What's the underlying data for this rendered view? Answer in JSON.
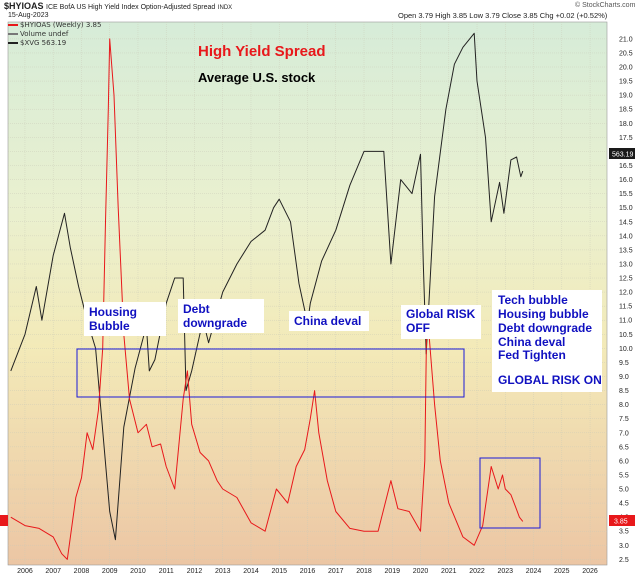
{
  "header": {
    "symbol": "$HYIOAS",
    "description": "ICE BofA US High Yield Index Option-Adjusted Spread",
    "exchange": "INDX",
    "date": "15-Aug-2023",
    "stats": "Open 3.79  High 3.85  Low 3.79  Close 3.85  Chg +0.02 (+0.52%)",
    "brand": "© StockCharts.com"
  },
  "legend": {
    "line1": "$HYIOAS (Weekly) 3.85",
    "line2": "Volume undef",
    "line3": "$XVG 563.19"
  },
  "colors": {
    "spread": "#e8181b",
    "stock": "#222222",
    "box": "#1a1ad8",
    "price_badge": "#1a1a1a"
  },
  "annotations": {
    "title": "High Yield Spread",
    "subtitle": "Average U.S. stock",
    "housing": [
      "Housing",
      "Bubble"
    ],
    "debt": [
      "Debt",
      "downgrade"
    ],
    "china": "China deval",
    "global": [
      "Global RISK",
      "OFF"
    ],
    "list": [
      "Tech bubble",
      "Housing bubble",
      "Debt downgrade",
      "China deval",
      "Fed Tighten",
      "",
      "GLOBAL RISK ON"
    ]
  },
  "badges": {
    "right_top": "563.19",
    "right_bottom": "3.85",
    "left": "3.85"
  },
  "chart_data": {
    "type": "line",
    "x_ticks": [
      "2006",
      "2007",
      "2008",
      "2009",
      "2010",
      "2011",
      "2012",
      "2013",
      "2014",
      "2015",
      "2016",
      "2017",
      "2018",
      "2019",
      "2020",
      "2021",
      "2022",
      "2023",
      "2024",
      "2025",
      "2026"
    ],
    "y_ticks": [
      "2.5",
      "3.0",
      "3.5",
      "4.0",
      "4.5",
      "5.0",
      "5.5",
      "6.0",
      "6.5",
      "7.0",
      "7.5",
      "8.0",
      "8.5",
      "9.0",
      "9.5",
      "10.0",
      "10.5",
      "11.0",
      "11.5",
      "12.0",
      "12.5",
      "13.0",
      "13.5",
      "14.0",
      "14.5",
      "15.0",
      "15.5",
      "16.0",
      "16.5",
      "17.0",
      "17.5",
      "18.0",
      "18.5",
      "19.0",
      "19.5",
      "20.0",
      "20.5",
      "21.0"
    ],
    "ylim": [
      2.3,
      21.6
    ],
    "xlim": [
      2005.4,
      2026.6
    ],
    "series": [
      {
        "name": "$HYIOAS (Weekly)",
        "x": [
          2005.5,
          2006.0,
          2006.5,
          2007.0,
          2007.3,
          2007.5,
          2007.8,
          2008.0,
          2008.2,
          2008.4,
          2008.6,
          2008.75,
          2008.85,
          2008.95,
          2009.0,
          2009.15,
          2009.3,
          2009.5,
          2009.7,
          2010.0,
          2010.3,
          2010.5,
          2010.8,
          2011.0,
          2011.3,
          2011.6,
          2011.75,
          2011.9,
          2012.2,
          2012.5,
          2012.8,
          2013.0,
          2013.5,
          2014.0,
          2014.5,
          2014.9,
          2015.3,
          2015.6,
          2015.9,
          2016.1,
          2016.25,
          2016.4,
          2016.7,
          2017.0,
          2017.5,
          2018.0,
          2018.5,
          2018.95,
          2019.2,
          2019.6,
          2020.0,
          2020.15,
          2020.22,
          2020.3,
          2020.5,
          2020.7,
          2021.0,
          2021.5,
          2021.9,
          2022.2,
          2022.5,
          2022.75,
          2022.9,
          2023.0,
          2023.2,
          2023.35,
          2023.5,
          2023.62
        ],
        "values": [
          4.0,
          3.7,
          3.6,
          3.3,
          2.7,
          2.5,
          4.7,
          5.4,
          7.0,
          6.4,
          7.8,
          10.0,
          14.5,
          18.5,
          21.0,
          19.0,
          15.0,
          10.5,
          8.2,
          7.0,
          7.3,
          6.5,
          6.6,
          5.8,
          5.0,
          8.2,
          9.2,
          7.3,
          6.3,
          6.0,
          5.3,
          5.0,
          4.7,
          3.8,
          3.5,
          5.0,
          4.5,
          5.8,
          6.4,
          7.5,
          8.5,
          7.0,
          5.3,
          4.2,
          3.6,
          3.5,
          3.5,
          5.3,
          4.3,
          4.2,
          3.5,
          6.0,
          11.0,
          10.5,
          8.0,
          6.0,
          4.5,
          3.3,
          3.0,
          3.7,
          5.8,
          5.0,
          5.5,
          5.0,
          4.8,
          4.4,
          4.0,
          3.85
        ]
      },
      {
        "name": "$XVG",
        "x": [
          2005.5,
          2006.0,
          2006.4,
          2006.6,
          2007.0,
          2007.4,
          2007.6,
          2007.9,
          2008.2,
          2008.5,
          2008.8,
          2009.0,
          2009.2,
          2009.5,
          2009.9,
          2010.3,
          2010.4,
          2010.6,
          2011.0,
          2011.3,
          2011.6,
          2011.7,
          2011.9,
          2012.3,
          2012.5,
          2013.0,
          2013.5,
          2014.0,
          2014.5,
          2014.8,
          2015.0,
          2015.4,
          2015.7,
          2016.0,
          2016.1,
          2016.5,
          2017.0,
          2017.5,
          2018.0,
          2018.7,
          2018.95,
          2019.3,
          2019.7,
          2020.0,
          2020.1,
          2020.2,
          2020.5,
          2020.9,
          2021.2,
          2021.5,
          2021.9,
          2022.0,
          2022.3,
          2022.5,
          2022.8,
          2022.95,
          2023.2,
          2023.4,
          2023.55,
          2023.62
        ],
        "values": [
          9.2,
          10.5,
          12.2,
          11.0,
          13.3,
          14.8,
          13.6,
          12.2,
          11.0,
          10.0,
          6.5,
          4.2,
          3.2,
          7.2,
          9.3,
          10.8,
          9.2,
          9.6,
          11.6,
          12.5,
          12.5,
          8.5,
          9.2,
          11.0,
          10.2,
          12.0,
          13.0,
          13.8,
          14.2,
          15.0,
          15.3,
          14.5,
          12.3,
          10.9,
          11.6,
          13.1,
          14.2,
          15.8,
          17.0,
          17.0,
          13.0,
          16.0,
          15.5,
          16.9,
          13.0,
          9.8,
          15.4,
          18.5,
          20.1,
          20.7,
          21.2,
          19.5,
          17.5,
          14.5,
          15.9,
          14.8,
          16.7,
          16.8,
          16.1,
          16.3
        ]
      }
    ]
  }
}
